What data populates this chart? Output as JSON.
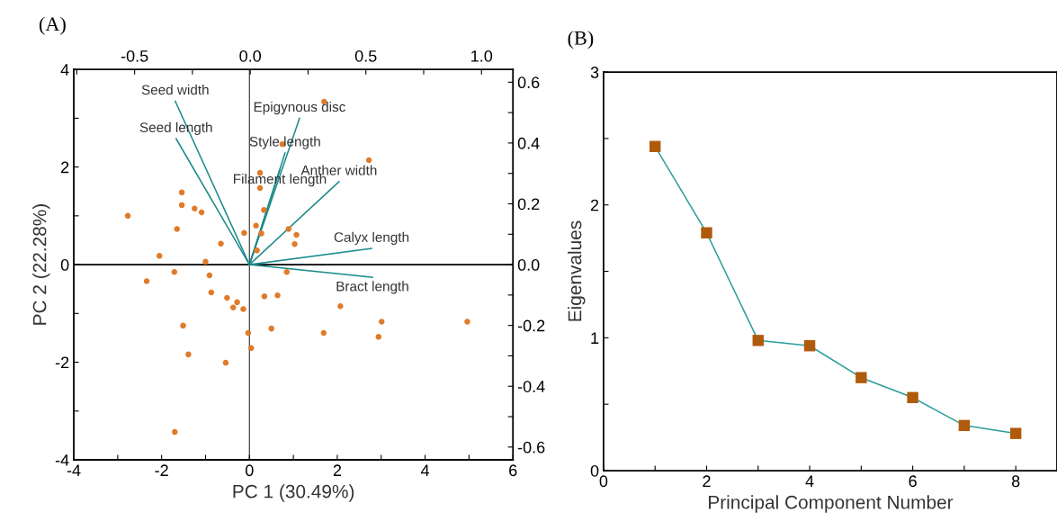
{
  "chart_data": [
    {
      "type": "scatter",
      "title": "(A)",
      "xlabel": "PC 1 (30.49%)",
      "ylabel": "PC 2 (22.28%)",
      "xlim": [
        -4,
        6
      ],
      "xticks": [
        -4,
        {
          "value": -3,
          "label": null
        },
        -2,
        {
          "value": -1,
          "label": null
        },
        0,
        {
          "value": 1,
          "label": null
        },
        2,
        {
          "value": 3,
          "label": null
        },
        4,
        {
          "value": 5,
          "label": null
        },
        6
      ],
      "ylim": [
        -4,
        4
      ],
      "yticks": [
        -4,
        {
          "value": -3,
          "label": null
        },
        -2,
        {
          "value": -1,
          "label": null
        },
        0,
        {
          "value": 1,
          "label": null
        },
        2,
        {
          "value": 3,
          "label": null
        },
        4
      ],
      "x2lim": [
        -0.763,
        1.136
      ],
      "x2ticks": [
        {
          "value": -0.75,
          "label": null
        },
        -0.5,
        {
          "value": -0.25,
          "label": null
        },
        {
          "value": 0,
          "label": "0.0"
        },
        {
          "value": 0.25,
          "label": null
        },
        0.5,
        {
          "value": 0.75,
          "label": null
        },
        {
          "value": 1,
          "label": "1.0"
        }
      ],
      "y2lim": [
        -0.642,
        0.642
      ],
      "y2ticks": [
        -0.6,
        {
          "value": -0.5,
          "label": null
        },
        -0.4,
        {
          "value": -0.3,
          "label": null
        },
        -0.2,
        {
          "value": -0.1,
          "label": null
        },
        {
          "value": 0,
          "label": "0.0"
        },
        {
          "value": 0.1,
          "label": null
        },
        0.2,
        {
          "value": 0.3,
          "label": null
        },
        0.4,
        {
          "value": 0.5,
          "label": null
        },
        0.6
      ],
      "grid": false,
      "marker": "circle",
      "ref_lines": [
        {
          "axis": "x",
          "value": 0,
          "color": "#444444"
        },
        {
          "axis": "y",
          "value": 0,
          "color": "#000000"
        }
      ],
      "series": [
        {
          "type": "scatter",
          "color": "#e07b2a",
          "x": [
            -2.77,
            -1.54,
            -1.54,
            -1.25,
            -1.09,
            -1.65,
            -0.65,
            -0.12,
            -2.05,
            -1.0,
            -1.71,
            -2.34,
            -0.91,
            0.75,
            0.24,
            0.24,
            0.33,
            0.15,
            0.27,
            0.17,
            1.7,
            2.72,
            0.89,
            1.07,
            1.03,
            0.85,
            -0.87,
            -0.51,
            -0.28,
            -0.37,
            -0.14,
            0.34,
            0.64,
            2.07,
            3.01,
            4.96,
            -1.51,
            -0.03,
            0.5,
            1.69,
            2.94,
            0.04,
            -1.39,
            -0.54,
            -1.7
          ],
          "values": [
            1.0,
            1.48,
            1.22,
            1.15,
            1.07,
            0.73,
            0.43,
            0.65,
            0.18,
            0.06,
            -0.15,
            -0.34,
            -0.22,
            2.47,
            1.88,
            1.57,
            1.12,
            0.8,
            0.64,
            0.29,
            3.34,
            2.14,
            0.73,
            0.61,
            0.42,
            -0.15,
            -0.57,
            -0.68,
            -0.77,
            -0.88,
            -0.91,
            -0.65,
            -0.63,
            -0.85,
            -1.17,
            -1.17,
            -1.25,
            -1.4,
            -1.31,
            -1.4,
            -1.48,
            -1.71,
            -1.84,
            -2.01,
            -3.43
          ]
        },
        {
          "type": "line",
          "marker": "none",
          "name": "Seed width",
          "color": "#1a8a8a",
          "x": [
            0,
            -1.69
          ],
          "values": [
            0,
            3.35
          ]
        },
        {
          "type": "line",
          "marker": "none",
          "name": "Seed length",
          "color": "#1a8a8a",
          "x": [
            0,
            -1.67
          ],
          "values": [
            0,
            2.58
          ]
        },
        {
          "type": "line",
          "marker": "none",
          "name": "Epigynous disc",
          "color": "#1a8a8a",
          "x": [
            0,
            1.14
          ],
          "values": [
            0,
            3.0
          ]
        },
        {
          "type": "line",
          "marker": "none",
          "name": "Style length",
          "color": "#1a8a8a",
          "x": [
            0,
            0.81
          ],
          "values": [
            0,
            2.29
          ]
        },
        {
          "type": "line",
          "marker": "none",
          "name": "Filament length",
          "color": "#1a8a8a",
          "x": [
            0,
            0.69
          ],
          "values": [
            0,
            1.94
          ]
        },
        {
          "type": "line",
          "marker": "none",
          "name": "Anther width",
          "color": "#1a8a8a",
          "x": [
            0,
            2.04
          ],
          "values": [
            0,
            1.7
          ]
        },
        {
          "type": "line",
          "marker": "none",
          "name": "Calyx length",
          "color": "#1a8a8a",
          "x": [
            0,
            2.78
          ],
          "values": [
            0,
            0.33
          ]
        },
        {
          "type": "line",
          "marker": "none",
          "name": "Bract length",
          "color": "#1a8a8a",
          "x": [
            0,
            2.8
          ],
          "values": [
            0,
            -0.26
          ]
        }
      ]
    },
    {
      "type": "line",
      "title": "(B)",
      "xlabel": "Principal Component Number",
      "ylabel": "Eigenvalues",
      "xlim": [
        0,
        8.8
      ],
      "xticks": [
        0,
        {
          "value": 1,
          "label": null
        },
        2,
        {
          "value": 3,
          "label": null
        },
        4,
        {
          "value": 5,
          "label": null
        },
        6,
        {
          "value": 7,
          "label": null
        },
        8
      ],
      "ylim": [
        0,
        3
      ],
      "yticks": [
        0,
        {
          "value": 0.5,
          "label": null
        },
        1,
        {
          "value": 1.5,
          "label": null
        },
        2,
        {
          "value": 2.5,
          "label": null
        },
        3
      ],
      "grid": false,
      "marker": "square",
      "line_style": "solid",
      "series": [
        {
          "color": "#2a9d9a",
          "colors": [
            "#b05a0c",
            "#b05a0c",
            "#b05a0c",
            "#b05a0c",
            "#b05a0c",
            "#b05a0c",
            "#b05a0c",
            "#b05a0c"
          ],
          "x": [
            1,
            2,
            3,
            4,
            5,
            6,
            7,
            8
          ],
          "values": [
            2.44,
            1.79,
            0.98,
            0.94,
            0.7,
            0.55,
            0.34,
            0.28
          ]
        }
      ]
    }
  ]
}
